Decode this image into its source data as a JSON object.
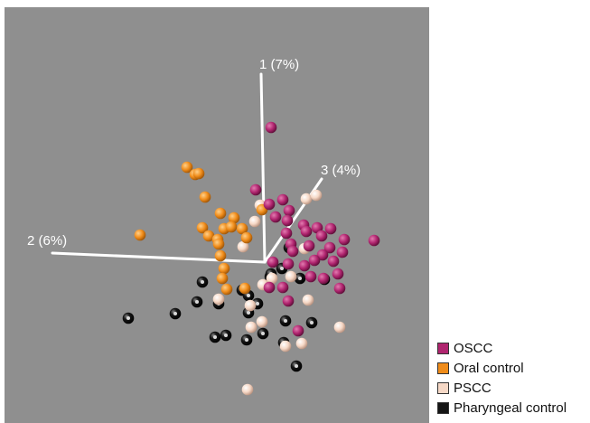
{
  "chart_data": {
    "type": "scatter",
    "description_free": true,
    "background_color": "#8f8f8f",
    "axes": [
      {
        "label": "1 (7%)"
      },
      {
        "label": "2 (6%)"
      },
      {
        "label": "3 (4%)"
      }
    ],
    "legend": {
      "placement": "bottom-right",
      "entries": [
        {
          "name": "OSCC",
          "color": "#b0256f"
        },
        {
          "name": "Oral control",
          "color": "#f08c1a"
        },
        {
          "name": "PSCC",
          "color": "#f6d8c6"
        },
        {
          "name": "Pharyngeal control",
          "color": "#151515"
        }
      ]
    },
    "series": [
      {
        "name": "OSCC",
        "color": "#b0256f",
        "points": [
          [
            300,
            141
          ],
          [
            283,
            210
          ],
          [
            313,
            221
          ],
          [
            298,
            226
          ],
          [
            320,
            233
          ],
          [
            305,
            240
          ],
          [
            318,
            244
          ],
          [
            336,
            249
          ],
          [
            351,
            252
          ],
          [
            366,
            253
          ],
          [
            339,
            256
          ],
          [
            317,
            258
          ],
          [
            356,
            261
          ],
          [
            381,
            265
          ],
          [
            414,
            266
          ],
          [
            322,
            270
          ],
          [
            342,
            272
          ],
          [
            365,
            274
          ],
          [
            324,
            278
          ],
          [
            379,
            279
          ],
          [
            357,
            282
          ],
          [
            348,
            288
          ],
          [
            369,
            289
          ],
          [
            302,
            290
          ],
          [
            319,
            292
          ],
          [
            337,
            294
          ],
          [
            374,
            303
          ],
          [
            344,
            306
          ],
          [
            358,
            308
          ],
          [
            298,
            318
          ],
          [
            313,
            318
          ],
          [
            376,
            319
          ],
          [
            319,
            333
          ],
          [
            330,
            366
          ]
        ]
      },
      {
        "name": "Oral control",
        "color": "#f08c1a",
        "points": [
          [
            207,
            185
          ],
          [
            216,
            193
          ],
          [
            220,
            192
          ],
          [
            227,
            218
          ],
          [
            290,
            232
          ],
          [
            244,
            236
          ],
          [
            259,
            241
          ],
          [
            224,
            252
          ],
          [
            248,
            253
          ],
          [
            268,
            253
          ],
          [
            231,
            261
          ],
          [
            256,
            251
          ],
          [
            241,
            265
          ],
          [
            242,
            270
          ],
          [
            273,
            263
          ],
          [
            155,
            260
          ],
          [
            244,
            283
          ],
          [
            248,
            297
          ],
          [
            246,
            308
          ],
          [
            251,
            320
          ],
          [
            271,
            319
          ]
        ]
      },
      {
        "name": "PSCC",
        "color": "#f6d8c6",
        "points": [
          [
            288,
            227
          ],
          [
            339,
            220
          ],
          [
            350,
            216
          ],
          [
            282,
            245
          ],
          [
            269,
            273
          ],
          [
            337,
            275
          ],
          [
            322,
            306
          ],
          [
            301,
            308
          ],
          [
            242,
            331
          ],
          [
            291,
            315
          ],
          [
            341,
            332
          ],
          [
            277,
            338
          ],
          [
            290,
            356
          ],
          [
            376,
            362
          ],
          [
            278,
            362
          ],
          [
            334,
            380
          ],
          [
            316,
            383
          ],
          [
            274,
            431
          ]
        ]
      },
      {
        "name": "Pharyngeal control",
        "color": "#151515",
        "points": [
          [
            320,
            274
          ],
          [
            312,
            297
          ],
          [
            299,
            306
          ],
          [
            332,
            308
          ],
          [
            359,
            309
          ],
          [
            224,
            312
          ],
          [
            268,
            321
          ],
          [
            275,
            327
          ],
          [
            218,
            334
          ],
          [
            285,
            336
          ],
          [
            242,
            336
          ],
          [
            194,
            347
          ],
          [
            142,
            352
          ],
          [
            275,
            346
          ],
          [
            316,
            355
          ],
          [
            345,
            357
          ],
          [
            291,
            369
          ],
          [
            238,
            373
          ],
          [
            250,
            371
          ],
          [
            273,
            376
          ],
          [
            314,
            379
          ],
          [
            328,
            405
          ],
          [
            300,
            303
          ]
        ]
      }
    ]
  }
}
